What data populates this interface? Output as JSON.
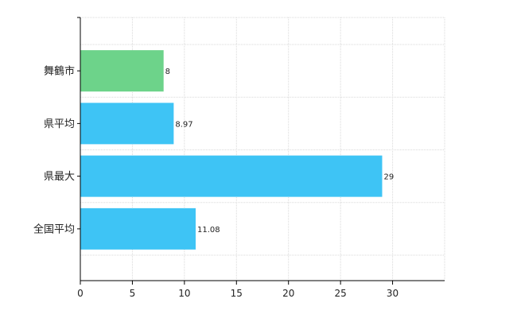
{
  "chart_data": {
    "type": "bar",
    "orientation": "horizontal",
    "categories": [
      "舞鶴市",
      "県平均",
      "県最大",
      "全国平均"
    ],
    "values": [
      8,
      8.97,
      29,
      11.08
    ],
    "data_labels": [
      "8",
      "8.97",
      "29",
      "11.08"
    ],
    "bar_colors": [
      "#6dd38a",
      "#3ec4f5",
      "#3ec4f5",
      "#3ec4f5"
    ],
    "x_ticks": [
      0,
      5,
      10,
      15,
      20,
      25,
      30
    ],
    "xlim": [
      0,
      35
    ],
    "grid": true,
    "grid_color": "#d9d9d9",
    "axis_color": "#000000"
  }
}
